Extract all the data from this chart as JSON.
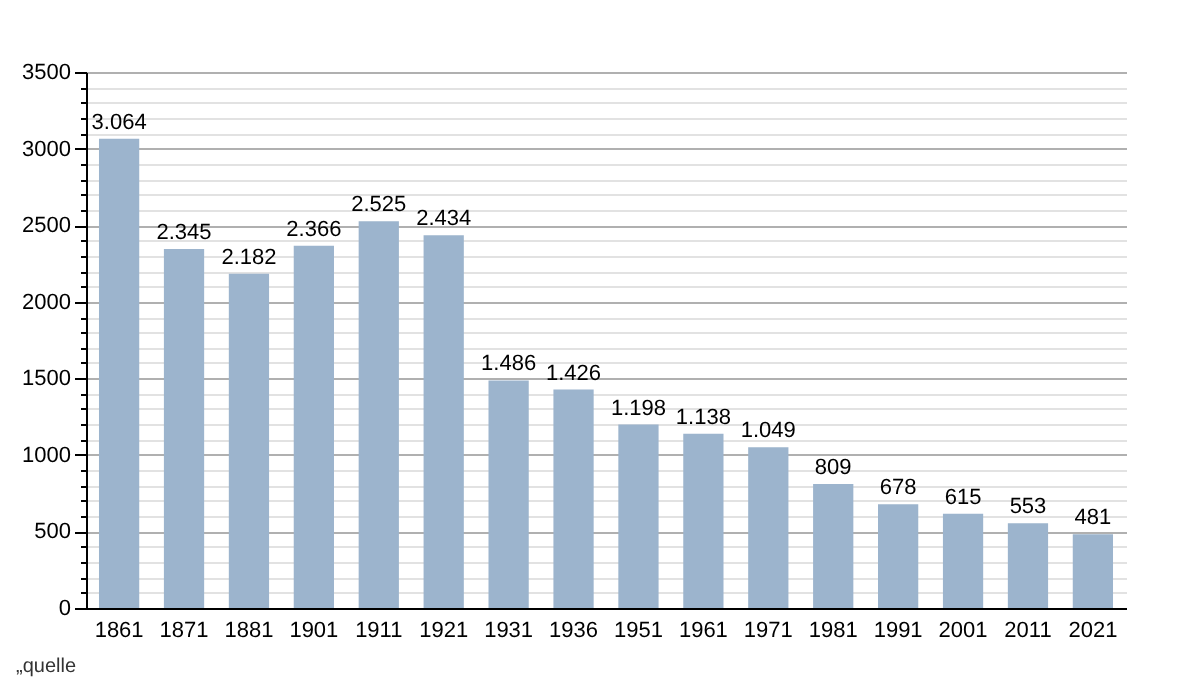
{
  "chart_data": {
    "type": "bar",
    "categories": [
      "1861",
      "1871",
      "1881",
      "1901",
      "1911",
      "1921",
      "1931",
      "1936",
      "1951",
      "1961",
      "1971",
      "1981",
      "1991",
      "2001",
      "2011",
      "2021"
    ],
    "values": [
      3064,
      2345,
      2182,
      2366,
      2525,
      2434,
      1486,
      1426,
      1198,
      1138,
      1049,
      809,
      678,
      615,
      553,
      481
    ],
    "value_labels": [
      "3.064",
      "2.345",
      "2.182",
      "2.366",
      "2.525",
      "2.434",
      "1.486",
      "1.426",
      "1.198",
      "1.138",
      "1.049",
      "809",
      "678",
      "615",
      "553",
      "481"
    ],
    "color": "#9cb4cd",
    "ylim": [
      0,
      3500
    ],
    "yticks": [
      0,
      {
        "value": 100,
        "label": null
      },
      {
        "value": 200,
        "label": null
      },
      {
        "value": 300,
        "label": null
      },
      {
        "value": 400,
        "label": null
      },
      500,
      {
        "value": 600,
        "label": null
      },
      {
        "value": 700,
        "label": null
      },
      {
        "value": 800,
        "label": null
      },
      {
        "value": 900,
        "label": null
      },
      1000,
      {
        "value": 1100,
        "label": null
      },
      {
        "value": 1200,
        "label": null
      },
      {
        "value": 1300,
        "label": null
      },
      {
        "value": 1400,
        "label": null
      },
      1500,
      {
        "value": 1600,
        "label": null
      },
      {
        "value": 1700,
        "label": null
      },
      {
        "value": 1800,
        "label": null
      },
      {
        "value": 1900,
        "label": null
      },
      2000,
      {
        "value": 2100,
        "label": null
      },
      {
        "value": 2200,
        "label": null
      },
      {
        "value": 2300,
        "label": null
      },
      {
        "value": 2400,
        "label": null
      },
      2500,
      {
        "value": 2600,
        "label": null
      },
      {
        "value": 2700,
        "label": null
      },
      {
        "value": 2800,
        "label": null
      },
      {
        "value": 2900,
        "label": null
      },
      3000,
      {
        "value": 3100,
        "label": null
      },
      {
        "value": 3200,
        "label": null
      },
      {
        "value": 3300,
        "label": null
      },
      {
        "value": 3400,
        "label": null
      },
      3500
    ],
    "grid": true,
    "annotations": [
      "„quelle"
    ]
  }
}
